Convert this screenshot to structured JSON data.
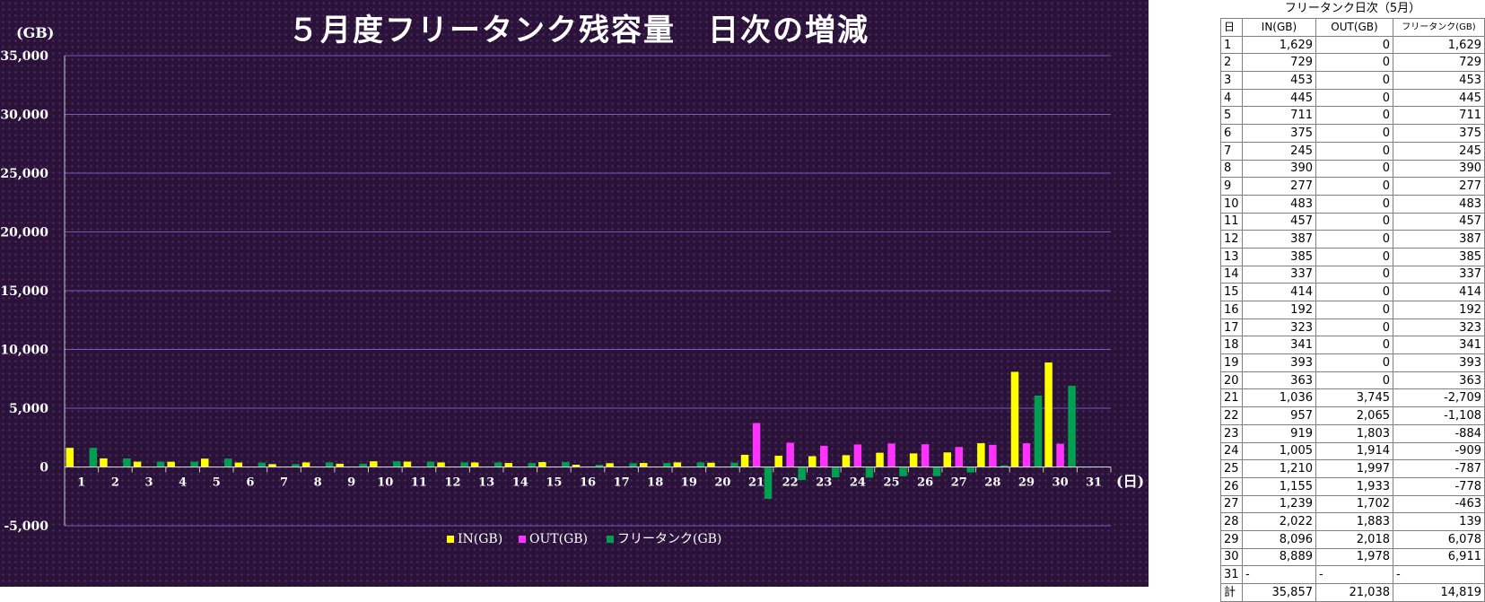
{
  "chart_data": {
    "type": "bar",
    "title": "５月度フリータンク残容量　日次の増減",
    "ylabel": "(GB)",
    "xlabel": "(日)",
    "ylim": [
      -5000,
      35000
    ],
    "yticks": [
      "35,000",
      "30,000",
      "25,000",
      "20,000",
      "15,000",
      "10,000",
      "5,000",
      "0",
      "-5,000"
    ],
    "grid": true,
    "legend_position": "bottom-center",
    "categories": [
      "1",
      "2",
      "3",
      "4",
      "5",
      "6",
      "7",
      "8",
      "9",
      "10",
      "11",
      "12",
      "13",
      "14",
      "15",
      "16",
      "17",
      "18",
      "19",
      "20",
      "21",
      "22",
      "23",
      "24",
      "25",
      "26",
      "27",
      "28",
      "29",
      "30",
      "31"
    ],
    "series": [
      {
        "name": "IN(GB)",
        "color": "#ffff00",
        "values": [
          1629,
          729,
          453,
          445,
          711,
          375,
          245,
          390,
          277,
          483,
          457,
          387,
          385,
          337,
          414,
          192,
          323,
          341,
          393,
          363,
          1036,
          957,
          919,
          1005,
          1210,
          1155,
          1239,
          2022,
          8096,
          8889,
          null
        ]
      },
      {
        "name": "OUT(GB)",
        "color": "#ff33ff",
        "values": [
          0,
          0,
          0,
          0,
          0,
          0,
          0,
          0,
          0,
          0,
          0,
          0,
          0,
          0,
          0,
          0,
          0,
          0,
          0,
          0,
          3745,
          2065,
          1803,
          1914,
          1997,
          1933,
          1702,
          1883,
          2018,
          1978,
          null
        ]
      },
      {
        "name": "フリータンク(GB)",
        "color": "#00a050",
        "values": [
          1629,
          729,
          453,
          445,
          711,
          375,
          245,
          390,
          277,
          483,
          457,
          387,
          385,
          337,
          414,
          192,
          323,
          341,
          393,
          363,
          -2709,
          -1108,
          -884,
          -909,
          -787,
          -778,
          -463,
          139,
          6078,
          6911,
          null
        ]
      }
    ]
  },
  "table": {
    "caption": "フリータンク日次（5月）",
    "headers": [
      "日",
      "IN(GB)",
      "OUT(GB)",
      "フリータンク(GB)"
    ],
    "rows": [
      [
        "1",
        "1,629",
        "0",
        "1,629"
      ],
      [
        "2",
        "729",
        "0",
        "729"
      ],
      [
        "3",
        "453",
        "0",
        "453"
      ],
      [
        "4",
        "445",
        "0",
        "445"
      ],
      [
        "5",
        "711",
        "0",
        "711"
      ],
      [
        "6",
        "375",
        "0",
        "375"
      ],
      [
        "7",
        "245",
        "0",
        "245"
      ],
      [
        "8",
        "390",
        "0",
        "390"
      ],
      [
        "9",
        "277",
        "0",
        "277"
      ],
      [
        "10",
        "483",
        "0",
        "483"
      ],
      [
        "11",
        "457",
        "0",
        "457"
      ],
      [
        "12",
        "387",
        "0",
        "387"
      ],
      [
        "13",
        "385",
        "0",
        "385"
      ],
      [
        "14",
        "337",
        "0",
        "337"
      ],
      [
        "15",
        "414",
        "0",
        "414"
      ],
      [
        "16",
        "192",
        "0",
        "192"
      ],
      [
        "17",
        "323",
        "0",
        "323"
      ],
      [
        "18",
        "341",
        "0",
        "341"
      ],
      [
        "19",
        "393",
        "0",
        "393"
      ],
      [
        "20",
        "363",
        "0",
        "363"
      ],
      [
        "21",
        "1,036",
        "3,745",
        "-2,709"
      ],
      [
        "22",
        "957",
        "2,065",
        "-1,108"
      ],
      [
        "23",
        "919",
        "1,803",
        "-884"
      ],
      [
        "24",
        "1,005",
        "1,914",
        "-909"
      ],
      [
        "25",
        "1,210",
        "1,997",
        "-787"
      ],
      [
        "26",
        "1,155",
        "1,933",
        "-778"
      ],
      [
        "27",
        "1,239",
        "1,702",
        "-463"
      ],
      [
        "28",
        "2,022",
        "1,883",
        "139"
      ],
      [
        "29",
        "8,096",
        "2,018",
        "6,078"
      ],
      [
        "30",
        "8,889",
        "1,978",
        "6,911"
      ],
      [
        "31",
        "-",
        "-",
        "-"
      ]
    ],
    "total": [
      "計",
      "35,857",
      "21,038",
      "14,819"
    ]
  }
}
